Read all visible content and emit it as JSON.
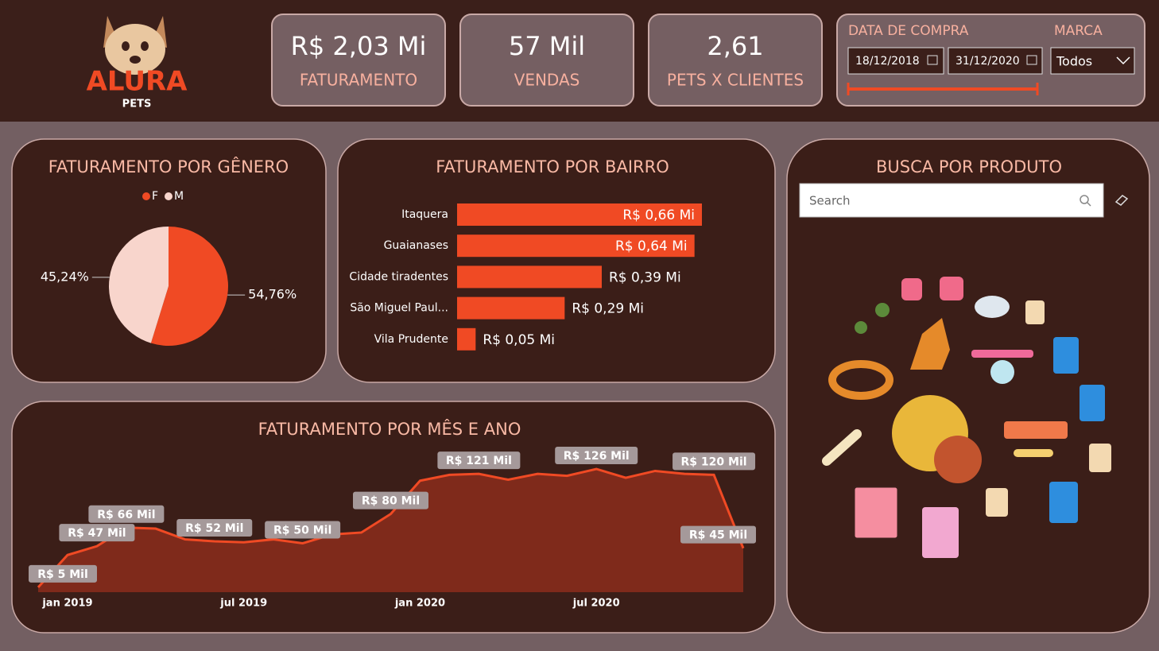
{
  "logo": {
    "name": "ALURA",
    "sub": "PETS"
  },
  "kpis": [
    {
      "value": "R$ 2,03 Mi",
      "label": "FATURAMENTO"
    },
    {
      "value": "57 Mil",
      "label": "VENDAS"
    },
    {
      "value": "2,61",
      "label": "PETS X CLIENTES"
    }
  ],
  "filters": {
    "date_title": "DATA DE COMPRA",
    "date_start": "18/12/2018",
    "date_end": "31/12/2020",
    "brand_title": "MARCA",
    "brand_value": "Todos"
  },
  "search": {
    "title": "BUSCA POR PRODUTO",
    "placeholder": "Search"
  },
  "chart_data": [
    {
      "type": "pie",
      "title": "FATURAMENTO POR GÊNERO",
      "categories": [
        "F",
        "M"
      ],
      "values": [
        54.76,
        45.24
      ],
      "value_labels": [
        "54,76%",
        "45,24%"
      ],
      "colors": [
        "#f04a24",
        "#f8d5cc"
      ],
      "legend": "top"
    },
    {
      "type": "bar",
      "orientation": "horizontal",
      "title": "FATURAMENTO POR BAIRRO",
      "categories": [
        "Itaquera",
        "Guaianases",
        "Cidade tiradentes",
        "São Miguel Paul...",
        "Vila Prudente"
      ],
      "values": [
        0.66,
        0.64,
        0.39,
        0.29,
        0.05
      ],
      "value_labels": [
        "R$ 0,66 Mi",
        "R$ 0,64 Mi",
        "R$ 0,39 Mi",
        "R$ 0,29 Mi",
        "R$ 0,05 Mi"
      ],
      "color": "#f04a24"
    },
    {
      "type": "area",
      "title": "FATURAMENTO POR MÊS E ANO",
      "categories": [
        null,
        "jan 2019",
        null,
        null,
        null,
        null,
        null,
        "jul 2019",
        null,
        null,
        null,
        null,
        null,
        "jan 2020",
        null,
        null,
        null,
        null,
        null,
        "jul 2020",
        null,
        null,
        null,
        null,
        null
      ],
      "values": [
        5,
        38,
        47,
        66,
        65,
        54,
        52,
        51,
        54,
        50,
        59,
        61,
        80,
        114,
        120,
        121,
        115,
        121,
        119,
        126,
        117,
        124,
        121,
        120,
        45
      ],
      "value_labels": [
        "R$ 5 Mil",
        null,
        "R$ 47 Mil",
        "R$ 66 Mil",
        null,
        null,
        "R$ 52 Mil",
        null,
        null,
        "R$ 50 Mil",
        null,
        null,
        "R$ 80 Mil",
        null,
        null,
        "R$ 121 Mil",
        null,
        null,
        null,
        "R$ 126 Mil",
        null,
        null,
        null,
        "R$ 120 Mil",
        "R$ 45 Mil"
      ],
      "color": "#f04a24",
      "fill": "#7f2a1b"
    }
  ]
}
